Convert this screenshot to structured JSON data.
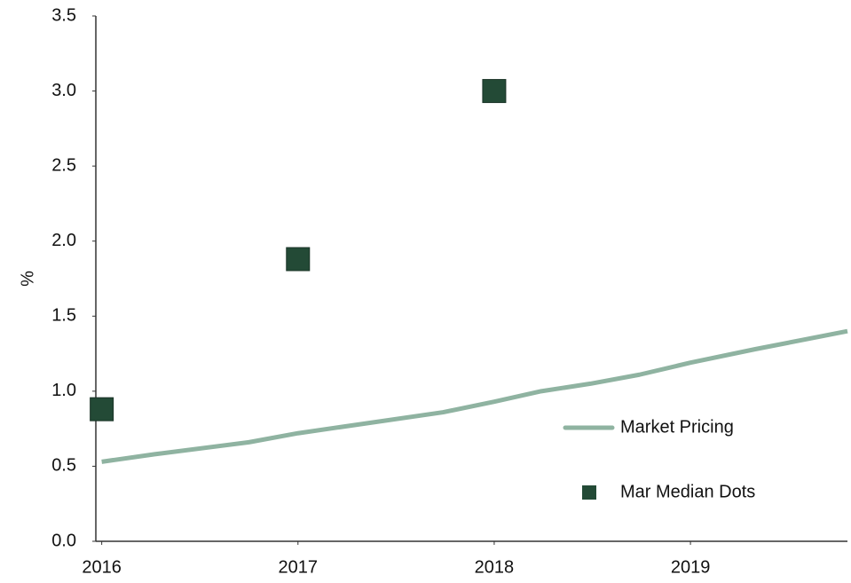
{
  "chart_data": {
    "type": "line",
    "ylabel": "%",
    "xlim": [
      2015.97,
      2019.8
    ],
    "xticks": [
      2016,
      2017,
      2018,
      2019
    ],
    "ylim": [
      0,
      3.5
    ],
    "yticks": [
      {
        "value": 0,
        "label": "0.0"
      },
      0.5,
      {
        "value": 1,
        "label": "1.0"
      },
      1.5,
      {
        "value": 2,
        "label": "2.0"
      },
      2.5,
      {
        "value": 3,
        "label": "3.0"
      },
      3.5
    ],
    "grid": false,
    "legend": "lower right",
    "series": [
      {
        "name": "Market Pricing",
        "type": "line",
        "color": "#8fb3a1",
        "x": [
          2016,
          2016.27,
          2016.75,
          2017,
          2017.74,
          2018,
          2018.24,
          2018.49,
          2018.74,
          2019,
          2019.33,
          2019.8
        ],
        "values": [
          0.53,
          0.58,
          0.66,
          0.72,
          0.86,
          0.93,
          1.0,
          1.05,
          1.11,
          1.19,
          1.28,
          1.4
        ]
      },
      {
        "name": "Mar Median Dots",
        "type": "scatter",
        "color": "#234a36",
        "x": [
          2016,
          2017,
          2018
        ],
        "values": [
          0.88,
          1.88,
          3.0
        ]
      }
    ]
  }
}
